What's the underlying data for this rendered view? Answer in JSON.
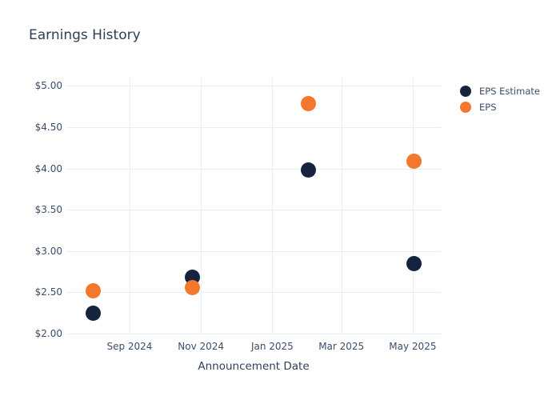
{
  "chart_data": {
    "type": "scatter",
    "title": "Earnings History",
    "xlabel": "Announcement Date",
    "ylabel": "",
    "x": [
      "2024-08-01",
      "2024-10-25",
      "2025-02-01",
      "2025-05-02"
    ],
    "series": [
      {
        "name": "EPS Estimate",
        "color": "#16233e",
        "values": [
          2.25,
          2.68,
          3.98,
          2.85
        ]
      },
      {
        "name": "EPS",
        "color": "#f4772e",
        "values": [
          2.52,
          2.56,
          4.79,
          4.09
        ]
      }
    ],
    "x_ticks": [
      {
        "label": "Sep 2024",
        "date": "2024-09-01"
      },
      {
        "label": "Nov 2024",
        "date": "2024-11-01"
      },
      {
        "label": "Jan 2025",
        "date": "2025-01-01"
      },
      {
        "label": "Mar 2025",
        "date": "2025-03-01"
      },
      {
        "label": "May 2025",
        "date": "2025-05-01"
      }
    ],
    "y_ticks": [
      {
        "label": "$2.00",
        "value": 2.0
      },
      {
        "label": "$2.50",
        "value": 2.5
      },
      {
        "label": "$3.00",
        "value": 3.0
      },
      {
        "label": "$3.50",
        "value": 3.5
      },
      {
        "label": "$4.00",
        "value": 4.0
      },
      {
        "label": "$4.50",
        "value": 4.5
      },
      {
        "label": "$5.00",
        "value": 5.0
      }
    ],
    "x_range": [
      "2024-07-09",
      "2025-05-25"
    ],
    "y_range": [
      2.0,
      5.1
    ],
    "grid": true,
    "legend_position": "right",
    "colors": {
      "background": "#ffffff",
      "grid": "#e9edf5",
      "tick_text": "#3a4d6b",
      "title_text": "#2f3e58"
    }
  }
}
